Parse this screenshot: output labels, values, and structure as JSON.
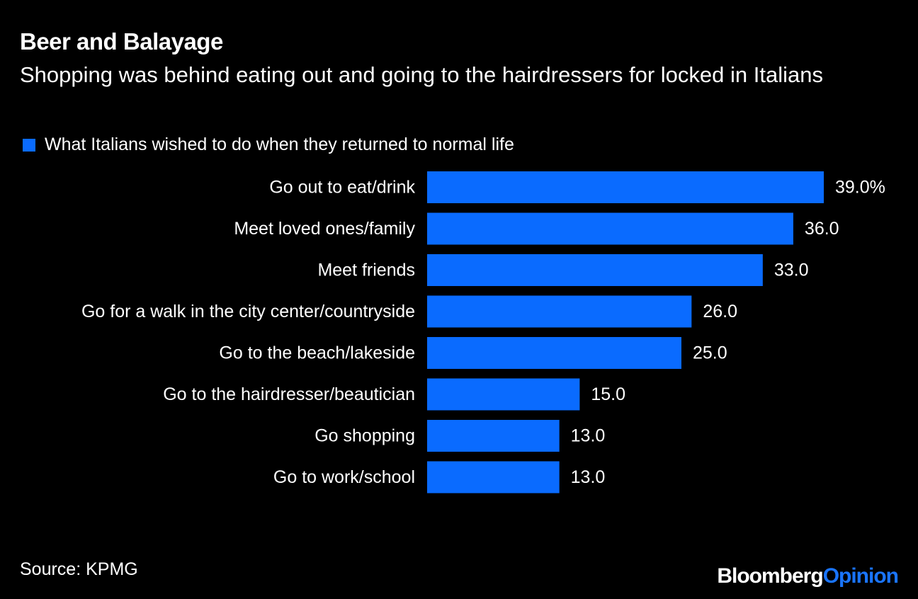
{
  "title": "Beer and Balayage",
  "subtitle": "Shopping was behind eating out and going to the hairdressers for locked in Italians",
  "colors": {
    "background": "#000000",
    "bar": "#0a6bff",
    "text": "#ffffff",
    "brand_accent": "#1a75ff"
  },
  "chart_data": {
    "type": "bar",
    "orientation": "horizontal",
    "categories": [
      "Go out to eat/drink",
      "Meet loved ones/family",
      "Meet friends",
      "Go for a walk in the city center/countryside",
      "Go to the beach/lakeside",
      "Go to the hairdresser/beautician",
      "Go shopping",
      "Go to work/school"
    ],
    "series": [
      {
        "name": "What Italians wished to do when they returned to normal life",
        "values": [
          39.0,
          36.0,
          33.0,
          26.0,
          25.0,
          15.0,
          13.0,
          13.0
        ]
      }
    ],
    "value_labels": [
      "39.0%",
      "36.0",
      "33.0",
      "26.0",
      "25.0",
      "15.0",
      "13.0",
      "13.0"
    ],
    "xlim": [
      0,
      39
    ],
    "grid": false,
    "legend": "top-left"
  },
  "source": "Source: KPMG",
  "brand": {
    "name": "Bloomberg",
    "suffix": "Opinion"
  }
}
